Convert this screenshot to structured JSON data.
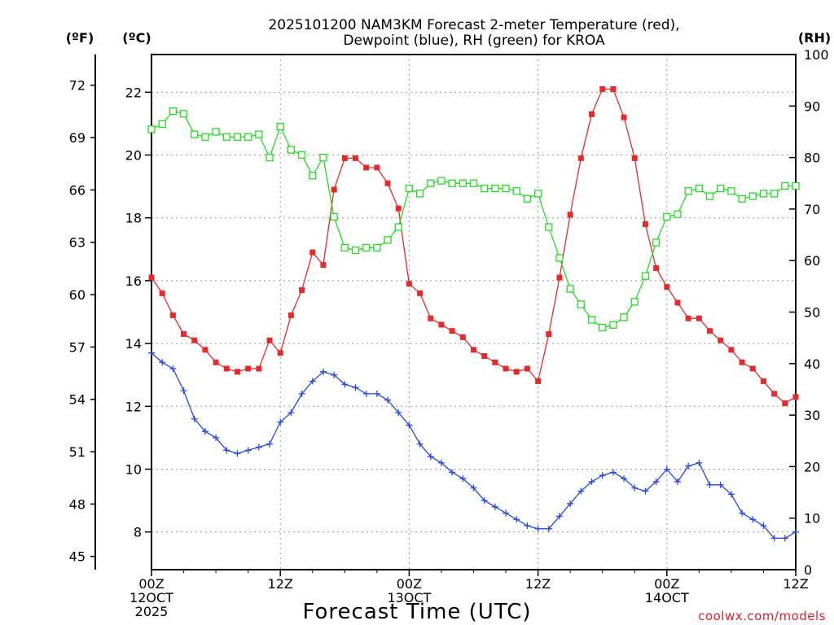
{
  "chart_data": {
    "type": "line",
    "title_lines": [
      "2025101200 NAM3KM Forecast 2-meter Temperature (red),",
      "Dewpoint (blue), RH (green) for KROA"
    ],
    "xlabel": "Forecast Time (UTC)",
    "credit": "coolwx.com/models",
    "unit_labels": {
      "fahrenheit": "(ºF)",
      "celsius": "(ºC)",
      "rh": "(RH)"
    },
    "x_range_hours": [
      0,
      60
    ],
    "x_ticks": [
      {
        "hour": 0,
        "lines": [
          "00Z",
          "12OCT",
          "2025"
        ]
      },
      {
        "hour": 12,
        "lines": [
          "12Z"
        ]
      },
      {
        "hour": 24,
        "lines": [
          "00Z",
          "13OCT"
        ]
      },
      {
        "hour": 36,
        "lines": [
          "12Z"
        ]
      },
      {
        "hour": 48,
        "lines": [
          "00Z",
          "14OCT"
        ]
      },
      {
        "hour": 60,
        "lines": [
          "12Z"
        ]
      }
    ],
    "ylim_c": [
      6.8,
      23.2
    ],
    "celsius_ticks": [
      "8",
      "10",
      "12",
      "14",
      "16",
      "18",
      "20",
      "22"
    ],
    "fahrenheit_ticks": [
      "45",
      "48",
      "51",
      "54",
      "57",
      "60",
      "63",
      "66",
      "69",
      "72"
    ],
    "rh_ticks": [
      "0",
      "10",
      "20",
      "30",
      "40",
      "50",
      "60",
      "70",
      "80",
      "90",
      "100"
    ],
    "hours": [
      0,
      1,
      2,
      3,
      4,
      5,
      6,
      7,
      8,
      9,
      10,
      11,
      12,
      13,
      14,
      15,
      16,
      17,
      18,
      19,
      20,
      21,
      22,
      23,
      24,
      25,
      26,
      27,
      28,
      29,
      30,
      31,
      32,
      33,
      34,
      35,
      36,
      37,
      38,
      39,
      40,
      41,
      42,
      43,
      44,
      45,
      46,
      47,
      48,
      49,
      50,
      51,
      52,
      53,
      54,
      55,
      56,
      57,
      58,
      59,
      60
    ],
    "series": [
      {
        "name": "2-meter Temperature",
        "unit": "C",
        "color": "#e8292c",
        "marker": "filled-square",
        "values": [
          16.1,
          15.6,
          14.9,
          14.3,
          14.1,
          13.8,
          13.4,
          13.2,
          13.1,
          13.2,
          13.2,
          14.1,
          13.7,
          14.9,
          15.7,
          16.9,
          16.5,
          18.9,
          19.9,
          19.9,
          19.6,
          19.6,
          19.1,
          18.3,
          15.9,
          15.6,
          14.8,
          14.6,
          14.4,
          14.2,
          13.8,
          13.6,
          13.4,
          13.2,
          13.1,
          13.2,
          12.8,
          14.3,
          16.1,
          18.1,
          19.9,
          21.3,
          22.1,
          22.1,
          21.2,
          19.9,
          17.8,
          16.4,
          15.8,
          15.3,
          14.8,
          14.8,
          14.4,
          14.1,
          13.8,
          13.4,
          13.2,
          12.8,
          12.4,
          12.1,
          12.3
        ]
      },
      {
        "name": "Dewpoint",
        "unit": "C",
        "color": "#2346e8",
        "marker": "plus",
        "values": [
          13.7,
          13.4,
          13.2,
          12.5,
          11.6,
          11.2,
          11.0,
          10.6,
          10.5,
          10.6,
          10.7,
          10.8,
          11.5,
          11.8,
          12.4,
          12.8,
          13.1,
          13.0,
          12.7,
          12.6,
          12.4,
          12.4,
          12.2,
          11.8,
          11.4,
          10.8,
          10.4,
          10.2,
          9.9,
          9.7,
          9.4,
          9.0,
          8.8,
          8.6,
          8.4,
          8.2,
          8.1,
          8.1,
          8.5,
          8.9,
          9.3,
          9.6,
          9.8,
          9.9,
          9.7,
          9.4,
          9.3,
          9.6,
          10.0,
          9.6,
          10.1,
          10.2,
          9.5,
          9.5,
          9.2,
          8.6,
          8.4,
          8.2,
          7.8,
          7.8,
          8.0
        ]
      },
      {
        "name": "RH",
        "unit": "%",
        "color": "#22dd22",
        "marker": "open-square",
        "axis": "right",
        "values": [
          85.5,
          86.5,
          89,
          88.5,
          84.5,
          84,
          85,
          84,
          84,
          84,
          84.5,
          80,
          86,
          81.5,
          80.5,
          76.5,
          80,
          68.5,
          62.5,
          62,
          62.5,
          62.5,
          64,
          66.5,
          74,
          73,
          75,
          75.5,
          75,
          75,
          75,
          74,
          74,
          74,
          73.5,
          72,
          73,
          66.5,
          60.5,
          54.5,
          51.5,
          48.5,
          47,
          47.5,
          49,
          52,
          57,
          63.5,
          68.5,
          69,
          73.5,
          74,
          72.5,
          74,
          73.5,
          72,
          72.5,
          73,
          73,
          74.5,
          74.5
        ]
      }
    ]
  }
}
